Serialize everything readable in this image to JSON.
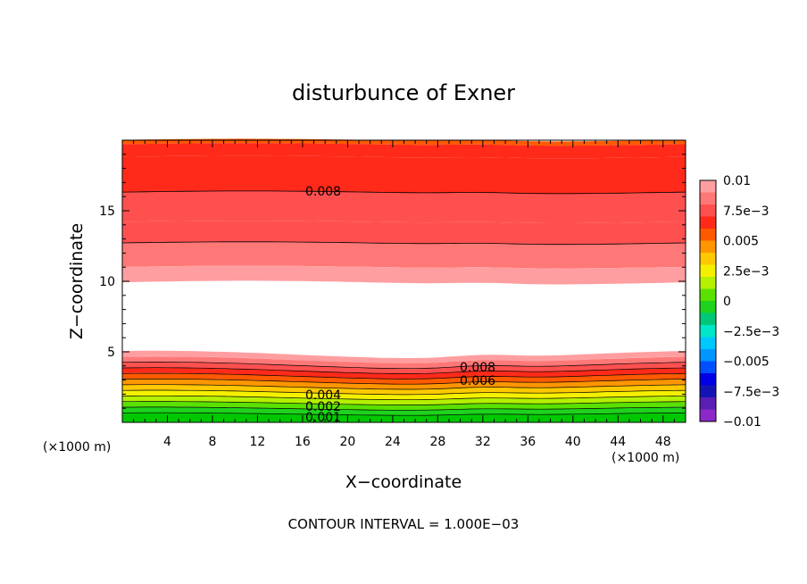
{
  "chart_data": {
    "type": "heatmap",
    "title": "disturbunce of Exner",
    "xlabel": "X−coordinate",
    "ylabel": "Z−coordinate",
    "x_unit": "(×1000 m)",
    "y_unit": "(×1000 m)",
    "x_ticks": [
      "4",
      "8",
      "12",
      "16",
      "20",
      "24",
      "28",
      "32",
      "36",
      "40",
      "44",
      "48"
    ],
    "y_ticks": [
      "5",
      "10",
      "15"
    ],
    "xlim": [
      0,
      50
    ],
    "ylim": [
      0,
      20
    ],
    "colorbar": {
      "labels": [
        "0.01",
        "7.5e−3",
        "0.005",
        "2.5e−3",
        "0",
        "−2.5e−3",
        "−0.005",
        "−7.5e−3",
        "−0.01"
      ],
      "colors": [
        "#ff9ea0",
        "#ff7878",
        "#ff5050",
        "#ff2a1a",
        "#ff5a00",
        "#ff9600",
        "#ffc800",
        "#f5f000",
        "#b4f000",
        "#5ae100",
        "#1ed21e",
        "#00c878",
        "#00e6c8",
        "#00c8ff",
        "#0096ff",
        "#0050ff",
        "#0000e6",
        "#1414b4",
        "#5a1eb4",
        "#8c28c8"
      ]
    },
    "contour_labels": [
      "0.008",
      "0.008",
      "0.006",
      "0.004",
      "0.002",
      "0.001"
    ],
    "contour_interval_text": "CONTOUR INTERVAL = 1.000E−03",
    "bands": [
      {
        "z_range": [
          0,
          0.5
        ],
        "value_range": [
          0.0,
          0.001
        ]
      },
      {
        "z_range": [
          0.5,
          4.8
        ],
        "value_range": [
          0.001,
          0.01
        ]
      },
      {
        "z_range": [
          4.8,
          9.8
        ],
        "value_range": null
      },
      {
        "z_range": [
          9.8,
          19.7
        ],
        "value_range": [
          0.01,
          0.007
        ]
      }
    ]
  }
}
